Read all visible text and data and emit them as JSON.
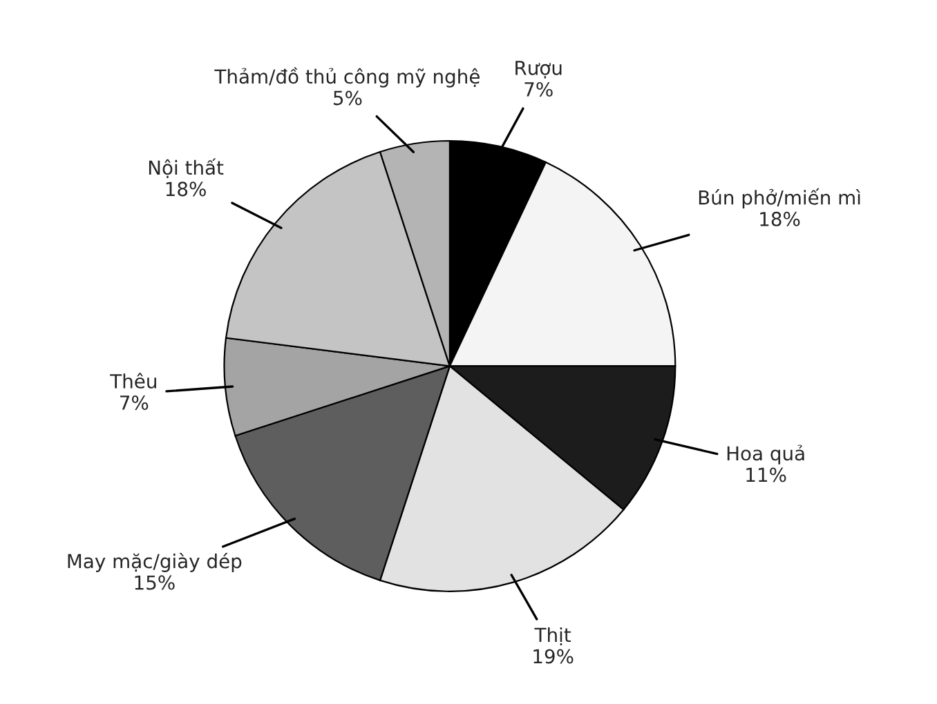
{
  "chart_data": {
    "type": "pie",
    "categories": [
      "Rượu",
      "Bún phở/miến mì",
      "Hoa quả",
      "Thịt",
      "May mặc/giày dép",
      "Thêu",
      "Nội thất",
      "Thảm/đồ thủ công mỹ nghệ"
    ],
    "values": [
      7,
      18,
      11,
      19,
      15,
      7,
      18,
      5
    ],
    "value_labels": [
      "7%",
      "18%",
      "11%",
      "19%",
      "15%",
      "7%",
      "18%",
      "5%"
    ],
    "colors": [
      "#000000",
      "#f4f4f4",
      "#1c1c1c",
      "#e2e2e2",
      "#5e5e5e",
      "#a4a4a4",
      "#c4c4c4",
      "#b4b4b4"
    ],
    "legend": false
  }
}
